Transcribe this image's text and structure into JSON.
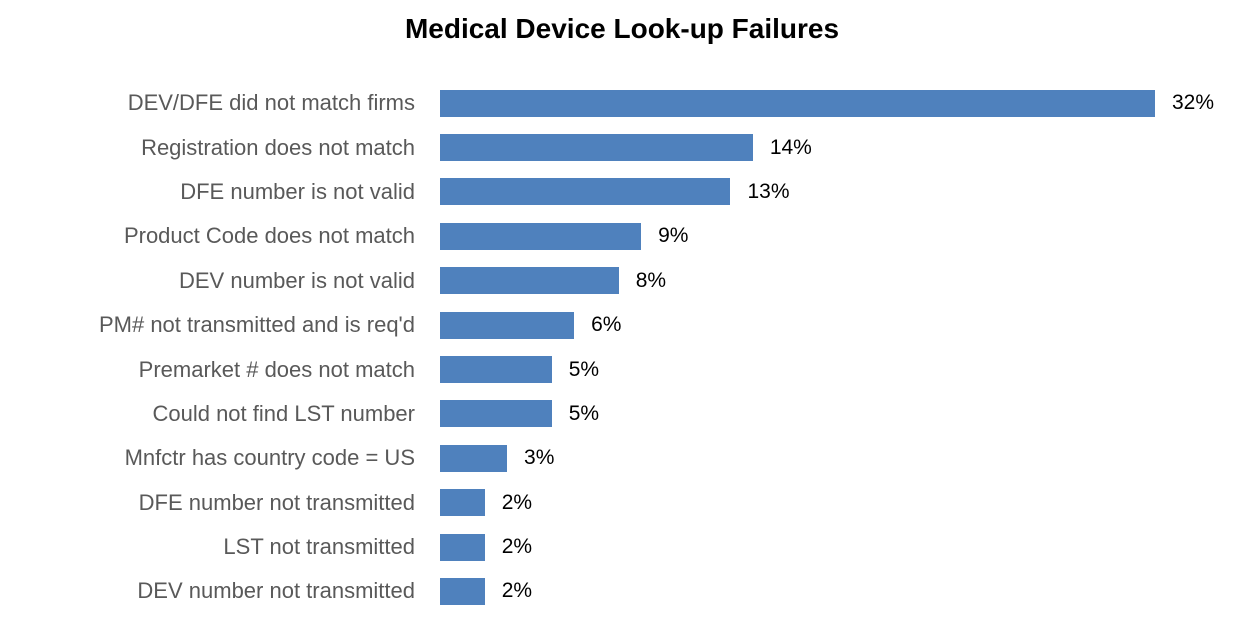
{
  "title": "Medical Device Look-up Failures",
  "chart_data": {
    "type": "bar",
    "orientation": "horizontal",
    "title": "Medical Device Look-up Failures",
    "categories": [
      "DEV/DFE did not match firms",
      "Registration does not match",
      "DFE number is not valid",
      "Product Code does not match",
      "DEV number is not valid",
      "PM# not transmitted and is req'd",
      "Premarket # does not match",
      "Could not find LST number",
      "Mnfctr has country code = US",
      "DFE number not transmitted",
      "LST not transmitted",
      "DEV number not transmitted"
    ],
    "values": [
      32,
      14,
      13,
      9,
      8,
      6,
      5,
      5,
      3,
      2,
      2,
      2
    ],
    "value_labels": [
      "32%",
      "14%",
      "13%",
      "9%",
      "8%",
      "6%",
      "5%",
      "5%",
      "3%",
      "2%",
      "2%",
      "2%"
    ],
    "xlabel": "",
    "ylabel": "",
    "xlim": [
      0,
      32
    ],
    "grid": false,
    "legend": false,
    "bar_color": "#4F81BD",
    "category_label_color": "#595959",
    "value_label_color": "#000000",
    "background_color": "#FFFFFF"
  }
}
